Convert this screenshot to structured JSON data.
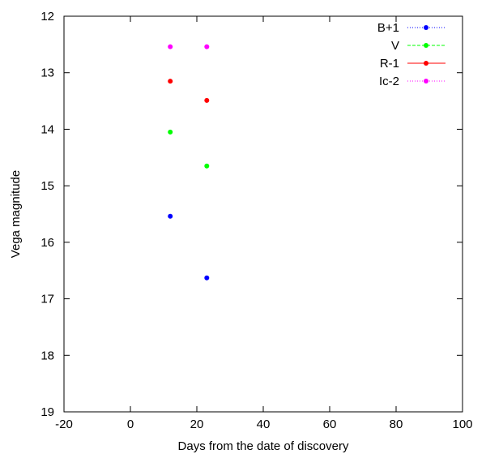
{
  "chart_data": {
    "type": "scatter",
    "title": "",
    "xlabel": "Days from the date of discovery",
    "ylabel": "Vega magnitude",
    "xlim": [
      -20,
      100
    ],
    "ylim": [
      12,
      19
    ],
    "y_inverted": true,
    "xticks": [
      -20,
      0,
      20,
      40,
      60,
      80,
      100
    ],
    "yticks": [
      12,
      13,
      14,
      15,
      16,
      17,
      18,
      19
    ],
    "legend_position": "top-right",
    "series": [
      {
        "name": "B+1",
        "color": "#0000ff",
        "line_style": "dotted",
        "points": [
          [
            12,
            15.54
          ],
          [
            23,
            16.63
          ]
        ]
      },
      {
        "name": "V",
        "color": "#00ff00",
        "line_style": "dashed",
        "points": [
          [
            12,
            14.05
          ],
          [
            23,
            14.65
          ]
        ]
      },
      {
        "name": "R-1",
        "color": "#ff0000",
        "line_style": "solid",
        "points": [
          [
            12,
            13.15
          ],
          [
            23,
            13.49
          ]
        ]
      },
      {
        "name": "Ic-2",
        "color": "#ff00ff",
        "line_style": "dotted",
        "points": [
          [
            12,
            12.54
          ],
          [
            23,
            12.54
          ]
        ]
      }
    ]
  }
}
